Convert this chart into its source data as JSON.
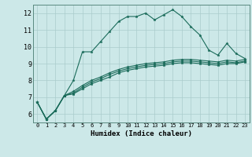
{
  "xlabel": "Humidex (Indice chaleur)",
  "background_color": "#cce8e8",
  "grid_color": "#aacccc",
  "line_color": "#1a6b5a",
  "xlim": [
    -0.5,
    23.5
  ],
  "ylim": [
    5.5,
    12.5
  ],
  "yticks": [
    6,
    7,
    8,
    9,
    10,
    11,
    12
  ],
  "xticks": [
    0,
    1,
    2,
    3,
    4,
    5,
    6,
    7,
    8,
    9,
    10,
    11,
    12,
    13,
    14,
    15,
    16,
    17,
    18,
    19,
    20,
    21,
    22,
    23
  ],
  "series": [
    [
      6.7,
      5.7,
      6.2,
      7.1,
      8.0,
      9.7,
      9.7,
      10.3,
      10.9,
      11.5,
      11.8,
      11.8,
      12.0,
      11.6,
      11.9,
      12.2,
      11.8,
      11.2,
      10.7,
      9.8,
      9.5,
      10.2,
      9.6,
      9.3
    ],
    [
      6.7,
      5.7,
      6.2,
      7.1,
      7.2,
      7.5,
      7.8,
      8.0,
      8.2,
      8.45,
      8.6,
      8.7,
      8.8,
      8.85,
      8.9,
      9.0,
      9.05,
      9.05,
      9.0,
      8.95,
      8.9,
      9.0,
      9.0,
      9.1
    ],
    [
      6.7,
      5.7,
      6.2,
      7.1,
      7.25,
      7.6,
      7.9,
      8.1,
      8.35,
      8.55,
      8.7,
      8.8,
      8.9,
      8.95,
      9.0,
      9.1,
      9.15,
      9.15,
      9.1,
      9.05,
      9.0,
      9.1,
      9.05,
      9.15
    ],
    [
      6.7,
      5.7,
      6.2,
      7.1,
      7.35,
      7.7,
      8.0,
      8.2,
      8.45,
      8.65,
      8.8,
      8.9,
      9.0,
      9.05,
      9.1,
      9.2,
      9.25,
      9.25,
      9.2,
      9.15,
      9.1,
      9.2,
      9.15,
      9.25
    ]
  ],
  "xlabel_fontsize": 6.5,
  "xtick_fontsize": 5.0,
  "ytick_fontsize": 6.0,
  "linewidth": 0.8,
  "markersize": 2.5
}
